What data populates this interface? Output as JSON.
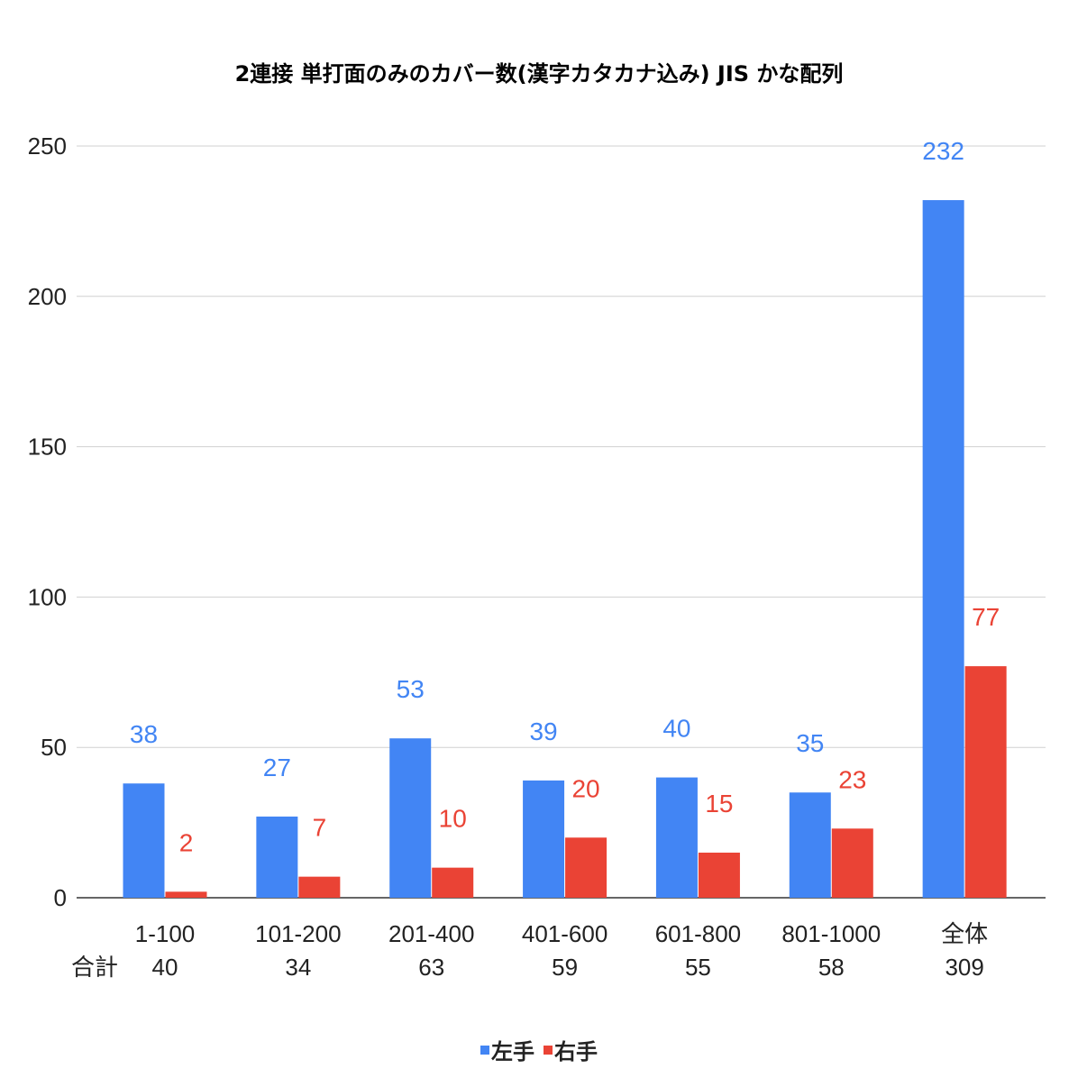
{
  "chart_data": {
    "type": "bar",
    "title": "2連接 単打面のみのカバー数(漢字カタカナ込み) JIS かな配列",
    "categories": [
      "1-100",
      "101-200",
      "201-400",
      "401-600",
      "601-800",
      "801-1000",
      "全体"
    ],
    "totals_label": "合計",
    "totals": [
      "40",
      "34",
      "63",
      "59",
      "55",
      "58",
      "309"
    ],
    "series": [
      {
        "name": "左手",
        "color": "#4285f4",
        "values": [
          38,
          27,
          53,
          39,
          40,
          35,
          232
        ]
      },
      {
        "name": "右手",
        "color": "#ea4335",
        "values": [
          2,
          7,
          10,
          20,
          15,
          23,
          77
        ]
      }
    ],
    "ylim": [
      0,
      250
    ],
    "yticks": [
      0,
      50,
      100,
      150,
      200,
      250
    ],
    "grid": true,
    "legend": "bottom"
  }
}
